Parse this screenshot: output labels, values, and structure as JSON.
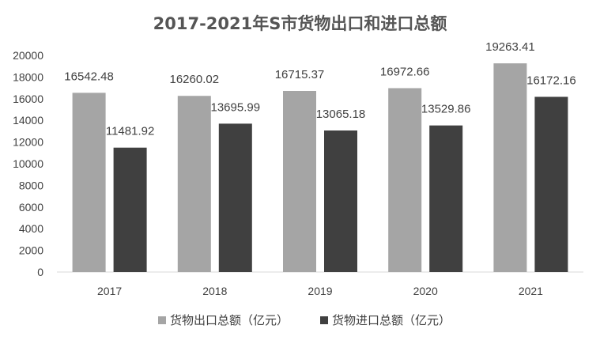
{
  "chart_data": {
    "type": "bar",
    "title": "2017-2021年S市货物出口和进口总额",
    "categories": [
      "2017",
      "2018",
      "2019",
      "2020",
      "2021"
    ],
    "series": [
      {
        "name": "货物出口总额（亿元）",
        "color": "#a5a5a5",
        "values": [
          16542.48,
          16260.02,
          16715.37,
          16972.66,
          19263.41
        ],
        "labels": [
          "16542.48",
          "16260.02",
          "16715.37",
          "16972.66",
          "19263.41"
        ]
      },
      {
        "name": "货物进口总额（亿元）",
        "color": "#404040",
        "values": [
          11481.92,
          13695.99,
          13065.18,
          13529.86,
          16172.16
        ],
        "labels": [
          "11481.92",
          "13695.99",
          "13065.18",
          "13529.86",
          "16172.16"
        ]
      }
    ],
    "ylim": [
      0,
      20000
    ],
    "yticks": [
      "0",
      "2000",
      "4000",
      "6000",
      "8000",
      "10000",
      "12000",
      "14000",
      "16000",
      "18000",
      "20000"
    ],
    "grid": false,
    "legend": "bottom"
  }
}
